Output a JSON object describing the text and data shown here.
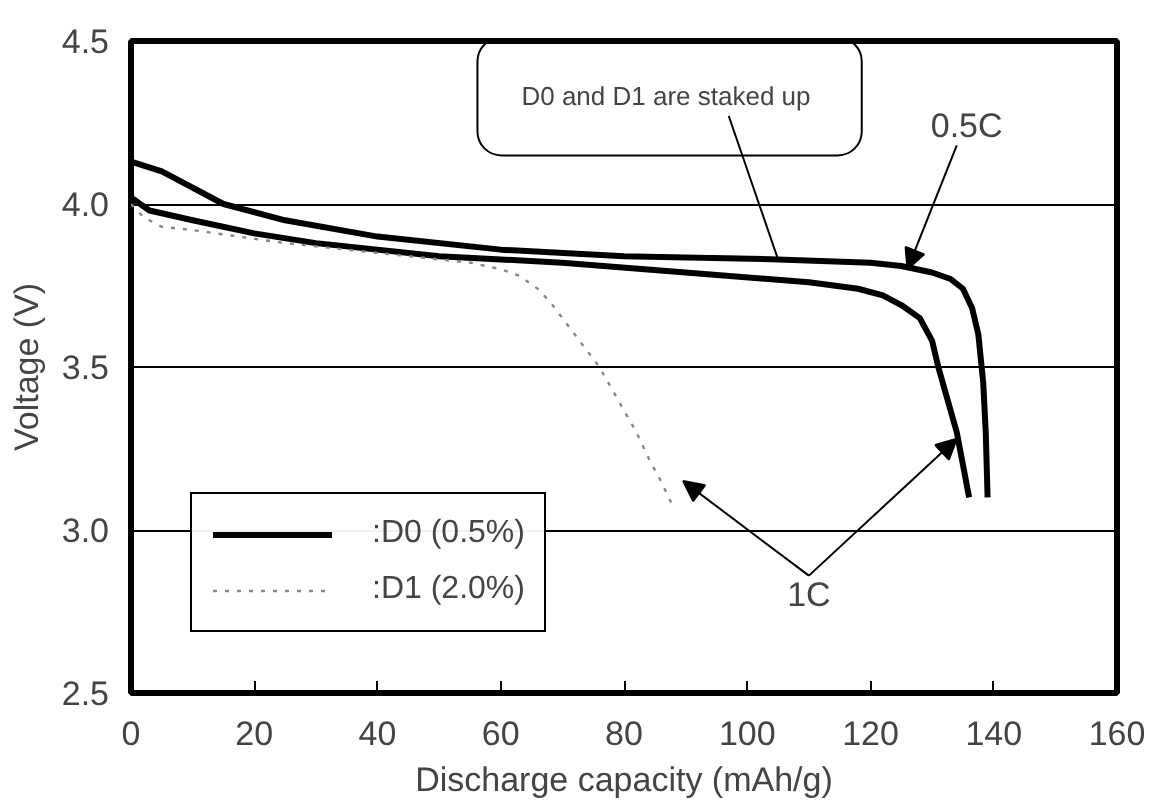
{
  "chart_data": {
    "type": "line",
    "xlabel": "Discharge capacity (mAh/g)",
    "ylabel": "Voltage (V)",
    "xlim": [
      0,
      160
    ],
    "ylim": [
      2.5,
      4.5
    ],
    "xticks": [
      0,
      20,
      40,
      60,
      80,
      100,
      120,
      140,
      160
    ],
    "yticks": [
      {
        "value": 2.5,
        "label": "2.5"
      },
      {
        "value": 3.0,
        "label": "3.0"
      },
      {
        "value": 3.5,
        "label": "3.5"
      },
      {
        "value": 4.0,
        "label": "4.0"
      },
      {
        "value": 4.5,
        "label": "4.5"
      }
    ],
    "grid": "y",
    "legend": "bottom left",
    "line_style": "solid",
    "marker": "none",
    "series": [
      {
        "name": ":D0 (0.5%)",
        "color": "#000000",
        "x": [
          0,
          5,
          15,
          25,
          40,
          60,
          80,
          105,
          120,
          125,
          130,
          133,
          135,
          136.5,
          137.5,
          138.3,
          138.7,
          139
        ],
        "values": [
          4.13,
          4.1,
          4.0,
          3.95,
          3.9,
          3.86,
          3.84,
          3.83,
          3.82,
          3.81,
          3.79,
          3.77,
          3.74,
          3.68,
          3.6,
          3.45,
          3.3,
          3.1
        ]
      },
      {
        "color": "#000000",
        "x": [
          0,
          3,
          10,
          20,
          30,
          50,
          70,
          90,
          110,
          118,
          122,
          125,
          128,
          130,
          131,
          132.5,
          134,
          135,
          136
        ],
        "values": [
          4.02,
          3.98,
          3.95,
          3.91,
          3.88,
          3.84,
          3.82,
          3.79,
          3.76,
          3.74,
          3.72,
          3.69,
          3.65,
          3.58,
          3.5,
          3.4,
          3.3,
          3.2,
          3.1
        ]
      },
      {
        "name": ":D1 (2.0%)",
        "color": "#888888",
        "line_style": "dotted",
        "x": [
          0,
          2,
          5,
          10,
          25,
          40,
          55,
          60,
          63,
          66,
          68,
          72,
          76,
          79,
          82,
          84,
          86,
          88
        ],
        "values": [
          4.0,
          3.96,
          3.93,
          3.92,
          3.88,
          3.85,
          3.82,
          3.8,
          3.78,
          3.74,
          3.7,
          3.6,
          3.5,
          3.4,
          3.3,
          3.22,
          3.15,
          3.07
        ]
      }
    ],
    "annotations": [
      {
        "text": "D0  and D1 are staked up",
        "x": 105,
        "y": 3.83
      },
      {
        "text": "0.5C",
        "x": 126,
        "y": 3.8
      },
      {
        "text": "1C",
        "x": 134,
        "y": 3.28
      }
    ]
  }
}
